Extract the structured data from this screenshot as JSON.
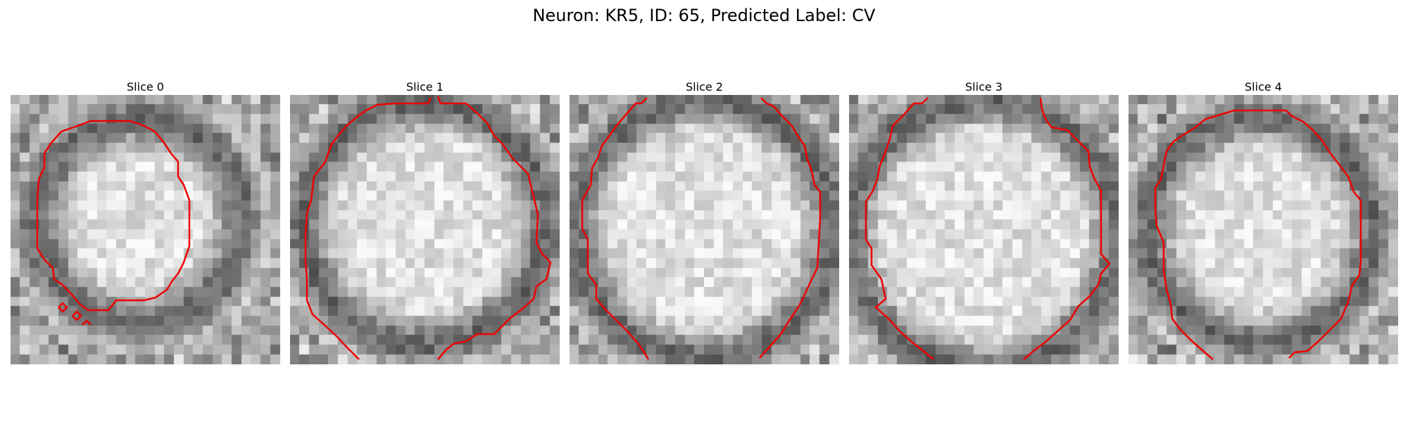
{
  "figure": {
    "title": "Neuron: KR5, ID: 65, Predicted Label: CV",
    "contour_color": "#ff0000",
    "panels": [
      {
        "title": "Slice 0",
        "seed": 11
      },
      {
        "title": "Slice 1",
        "seed": 23
      },
      {
        "title": "Slice 2",
        "seed": 37
      },
      {
        "title": "Slice 3",
        "seed": 41
      },
      {
        "title": "Slice 4",
        "seed": 59
      }
    ]
  }
}
